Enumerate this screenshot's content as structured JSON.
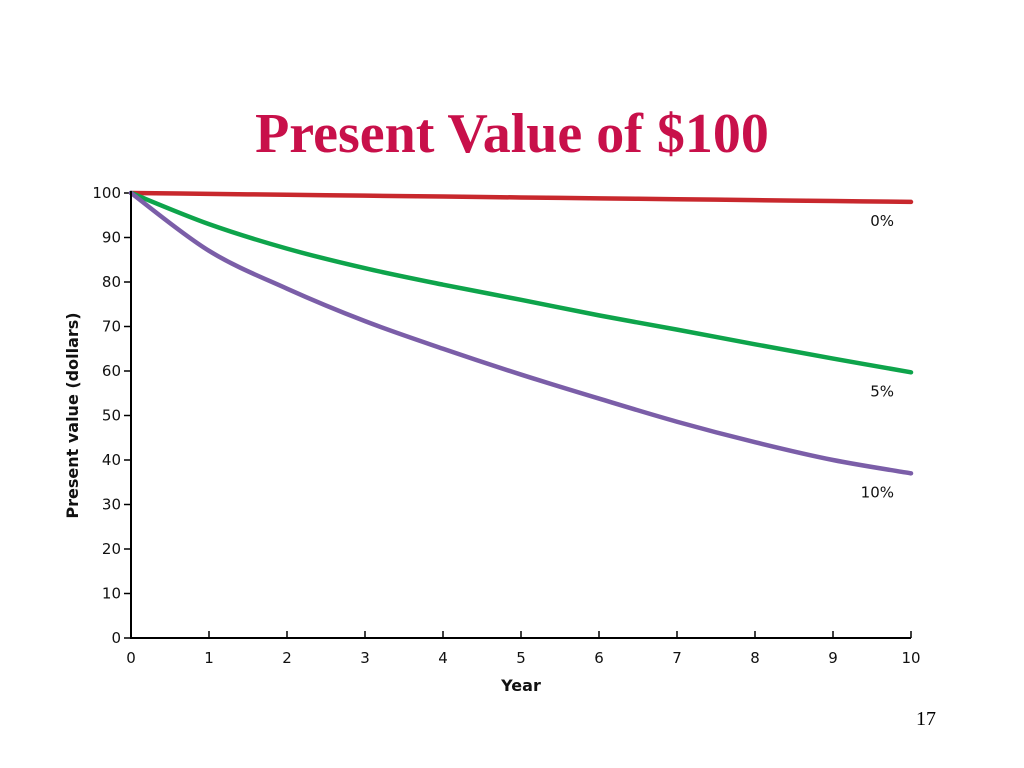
{
  "slide": {
    "title": "Present Value of $100",
    "title_color": "#c8104a",
    "page_number": "17"
  },
  "chart_data": {
    "type": "line",
    "title": "Present Value of $100",
    "xlabel": "Year",
    "ylabel": "Present value (dollars)",
    "xlim": [
      0,
      10
    ],
    "ylim": [
      0,
      100
    ],
    "x_ticks": [
      "0",
      "1",
      "2",
      "3",
      "4",
      "5",
      "6",
      "7",
      "8",
      "9",
      "10"
    ],
    "y_ticks": [
      "0",
      "10",
      "20",
      "30",
      "40",
      "50",
      "60",
      "70",
      "80",
      "90",
      "100"
    ],
    "grid": false,
    "x": [
      0,
      1,
      2,
      3,
      4,
      5,
      6,
      7,
      8,
      9,
      10
    ],
    "series": [
      {
        "name": "0%",
        "color": "#c8282d",
        "values": [
          100,
          99.8,
          99.6,
          99.4,
          99.2,
          99.0,
          98.8,
          98.6,
          98.4,
          98.2,
          98.0
        ]
      },
      {
        "name": "5%",
        "color": "#0ea44b",
        "values": [
          100,
          93.0,
          87.5,
          83.1,
          79.4,
          76.0,
          72.5,
          69.3,
          66.0,
          62.8,
          59.7
        ]
      },
      {
        "name": "10%",
        "color": "#7b5ea8",
        "values": [
          100,
          87.0,
          78.5,
          71.2,
          65.0,
          59.2,
          53.8,
          48.6,
          44.0,
          40.0,
          37.0
        ]
      }
    ]
  }
}
